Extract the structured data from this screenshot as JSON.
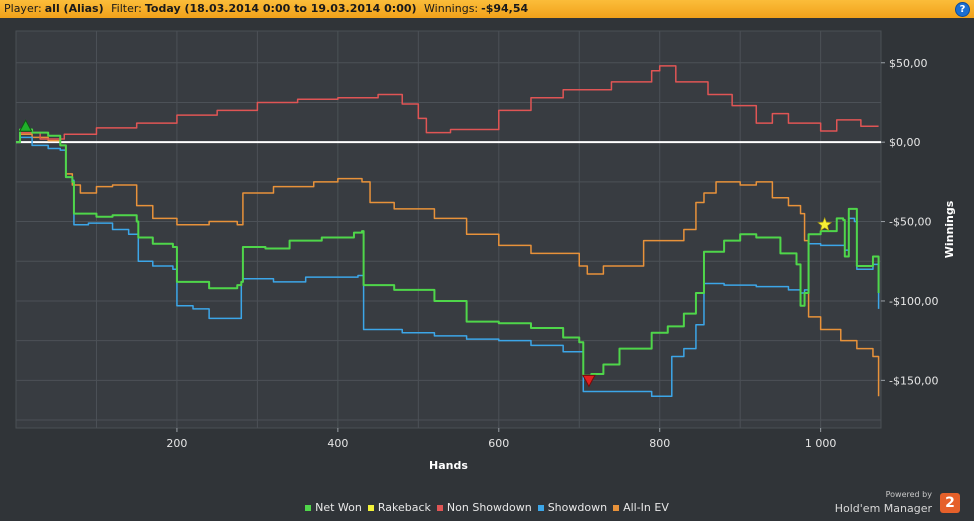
{
  "header": {
    "player_label": "Player:",
    "player_value": "all (Alias)",
    "filter_label": "Filter:",
    "filter_value": "Today (18.03.2014 0:00 to 19.03.2014 0:00)",
    "winnings_label": "Winnings:",
    "winnings_value": "-$94,54",
    "help_symbol": "?"
  },
  "branding": {
    "powered_by": "Powered by",
    "product": "Hold'em Manager",
    "logo_text": "2"
  },
  "chart_data": {
    "type": "line",
    "xlabel": "Hands",
    "ylabel": "Winnings",
    "xlim": [
      0,
      1075
    ],
    "ylim": [
      -180,
      70
    ],
    "x_ticks": [
      200,
      400,
      600,
      800,
      1000
    ],
    "x_tick_labels": [
      "200",
      "400",
      "600",
      "800",
      "1 000"
    ],
    "y_ticks": [
      50,
      0,
      -50,
      -100,
      -150
    ],
    "y_tick_labels": [
      "$50,00",
      "$0,00",
      "-$50,00",
      "-$100,00",
      "-$150,00"
    ],
    "grid": true,
    "legend_position": "bottom",
    "series": [
      {
        "name": "Net Won",
        "color": "#4fd64a",
        "points": [
          [
            0,
            0
          ],
          [
            5,
            8
          ],
          [
            20,
            6
          ],
          [
            40,
            4
          ],
          [
            55,
            -2
          ],
          [
            62,
            -22
          ],
          [
            70,
            -25
          ],
          [
            72,
            -45
          ],
          [
            85,
            -45
          ],
          [
            100,
            -47
          ],
          [
            120,
            -46
          ],
          [
            150,
            -50
          ],
          [
            152,
            -60
          ],
          [
            170,
            -64
          ],
          [
            195,
            -66
          ],
          [
            200,
            -88
          ],
          [
            240,
            -92
          ],
          [
            275,
            -90
          ],
          [
            280,
            -88
          ],
          [
            282,
            -66
          ],
          [
            310,
            -67
          ],
          [
            340,
            -62
          ],
          [
            380,
            -60
          ],
          [
            420,
            -57
          ],
          [
            430,
            -56
          ],
          [
            432,
            -90
          ],
          [
            470,
            -93
          ],
          [
            520,
            -100
          ],
          [
            560,
            -113
          ],
          [
            600,
            -114
          ],
          [
            640,
            -117
          ],
          [
            680,
            -123
          ],
          [
            700,
            -126
          ],
          [
            705,
            -147
          ],
          [
            715,
            -146
          ],
          [
            730,
            -140
          ],
          [
            750,
            -130
          ],
          [
            790,
            -120
          ],
          [
            810,
            -116
          ],
          [
            830,
            -108
          ],
          [
            845,
            -95
          ],
          [
            855,
            -69
          ],
          [
            880,
            -62
          ],
          [
            900,
            -58
          ],
          [
            920,
            -60
          ],
          [
            950,
            -70
          ],
          [
            970,
            -77
          ],
          [
            975,
            -103
          ],
          [
            980,
            -95
          ],
          [
            985,
            -58
          ],
          [
            1000,
            -56
          ],
          [
            1020,
            -48
          ],
          [
            1028,
            -49
          ],
          [
            1030,
            -72
          ],
          [
            1035,
            -42
          ],
          [
            1042,
            -42
          ],
          [
            1045,
            -78
          ],
          [
            1065,
            -72
          ],
          [
            1072,
            -95
          ]
        ]
      },
      {
        "name": "Rakeback",
        "color": "#f2f23a",
        "points": []
      },
      {
        "name": "Non Showdown",
        "color": "#e05555",
        "points": [
          [
            0,
            0
          ],
          [
            5,
            6
          ],
          [
            15,
            6
          ],
          [
            30,
            2
          ],
          [
            60,
            5
          ],
          [
            100,
            9
          ],
          [
            150,
            12
          ],
          [
            200,
            17
          ],
          [
            250,
            20
          ],
          [
            300,
            25
          ],
          [
            350,
            27
          ],
          [
            400,
            28
          ],
          [
            450,
            30
          ],
          [
            480,
            24
          ],
          [
            500,
            15
          ],
          [
            510,
            6
          ],
          [
            540,
            8
          ],
          [
            570,
            8
          ],
          [
            600,
            20
          ],
          [
            640,
            28
          ],
          [
            680,
            33
          ],
          [
            740,
            38
          ],
          [
            790,
            45
          ],
          [
            800,
            48
          ],
          [
            820,
            38
          ],
          [
            860,
            30
          ],
          [
            890,
            23
          ],
          [
            920,
            12
          ],
          [
            940,
            18
          ],
          [
            960,
            12
          ],
          [
            980,
            12
          ],
          [
            1000,
            7
          ],
          [
            1020,
            14
          ],
          [
            1050,
            10
          ],
          [
            1072,
            10
          ]
        ]
      },
      {
        "name": "Showdown",
        "color": "#3ca6e8",
        "points": [
          [
            0,
            0
          ],
          [
            5,
            3
          ],
          [
            20,
            -2
          ],
          [
            40,
            -4
          ],
          [
            55,
            -5
          ],
          [
            62,
            -22
          ],
          [
            70,
            -24
          ],
          [
            72,
            -52
          ],
          [
            90,
            -51
          ],
          [
            120,
            -55
          ],
          [
            140,
            -58
          ],
          [
            152,
            -75
          ],
          [
            170,
            -78
          ],
          [
            195,
            -80
          ],
          [
            200,
            -103
          ],
          [
            220,
            -105
          ],
          [
            240,
            -111
          ],
          [
            275,
            -111
          ],
          [
            280,
            -88
          ],
          [
            282,
            -86
          ],
          [
            320,
            -88
          ],
          [
            360,
            -85
          ],
          [
            400,
            -85
          ],
          [
            425,
            -84
          ],
          [
            430,
            -84
          ],
          [
            432,
            -118
          ],
          [
            480,
            -120
          ],
          [
            520,
            -122
          ],
          [
            560,
            -124
          ],
          [
            600,
            -125
          ],
          [
            640,
            -128
          ],
          [
            680,
            -132
          ],
          [
            700,
            -132
          ],
          [
            705,
            -157
          ],
          [
            750,
            -157
          ],
          [
            790,
            -160
          ],
          [
            810,
            -160
          ],
          [
            815,
            -135
          ],
          [
            830,
            -130
          ],
          [
            845,
            -115
          ],
          [
            855,
            -89
          ],
          [
            880,
            -90
          ],
          [
            920,
            -91
          ],
          [
            960,
            -93
          ],
          [
            975,
            -95
          ],
          [
            980,
            -93
          ],
          [
            985,
            -64
          ],
          [
            1000,
            -65
          ],
          [
            1025,
            -65
          ],
          [
            1030,
            -68
          ],
          [
            1035,
            -48
          ],
          [
            1042,
            -50
          ],
          [
            1045,
            -80
          ],
          [
            1065,
            -77
          ],
          [
            1072,
            -105
          ]
        ]
      },
      {
        "name": "All-In EV",
        "color": "#e8923a",
        "points": [
          [
            0,
            0
          ],
          [
            5,
            5
          ],
          [
            20,
            3
          ],
          [
            40,
            1
          ],
          [
            55,
            -2
          ],
          [
            62,
            -20
          ],
          [
            70,
            -27
          ],
          [
            80,
            -32
          ],
          [
            100,
            -28
          ],
          [
            120,
            -27
          ],
          [
            150,
            -40
          ],
          [
            170,
            -48
          ],
          [
            200,
            -52
          ],
          [
            240,
            -50
          ],
          [
            275,
            -52
          ],
          [
            282,
            -32
          ],
          [
            320,
            -28
          ],
          [
            370,
            -25
          ],
          [
            400,
            -23
          ],
          [
            430,
            -25
          ],
          [
            440,
            -38
          ],
          [
            470,
            -42
          ],
          [
            520,
            -48
          ],
          [
            560,
            -58
          ],
          [
            600,
            -65
          ],
          [
            640,
            -70
          ],
          [
            700,
            -78
          ],
          [
            710,
            -83
          ],
          [
            730,
            -78
          ],
          [
            780,
            -62
          ],
          [
            830,
            -55
          ],
          [
            845,
            -38
          ],
          [
            855,
            -32
          ],
          [
            870,
            -25
          ],
          [
            900,
            -27
          ],
          [
            920,
            -25
          ],
          [
            940,
            -35
          ],
          [
            960,
            -40
          ],
          [
            975,
            -45
          ],
          [
            980,
            -62
          ],
          [
            985,
            -110
          ],
          [
            1000,
            -118
          ],
          [
            1025,
            -125
          ],
          [
            1035,
            -125
          ],
          [
            1045,
            -130
          ],
          [
            1065,
            -135
          ],
          [
            1072,
            -160
          ]
        ]
      }
    ],
    "markers": [
      {
        "type": "triangle-up",
        "color": "#20b02a",
        "x": 12,
        "y": 10
      },
      {
        "type": "triangle-down",
        "color": "#e02020",
        "x": 712,
        "y": -150
      },
      {
        "type": "star",
        "color": "#f7f035",
        "x": 1005,
        "y": -52
      }
    ]
  }
}
